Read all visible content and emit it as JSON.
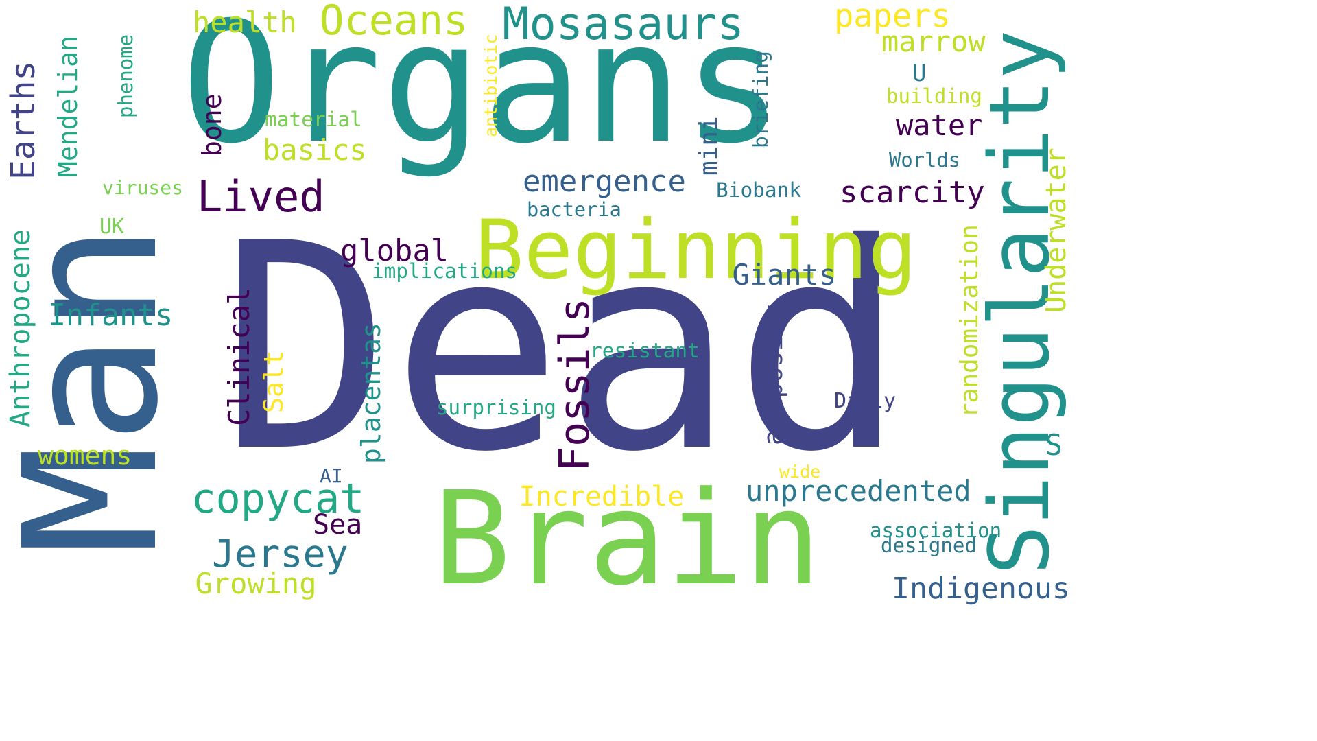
{
  "palette": {
    "dark_purple": "#440154",
    "indigo": "#414487",
    "steel_blue": "#355f8d",
    "blue_teal": "#2a788e",
    "teal": "#21918c",
    "sea_green": "#22a884",
    "green": "#44bf70",
    "yellow_green": "#7ad151",
    "lime": "#bddf26",
    "yellow": "#fde725"
  },
  "words": [
    {
      "text": "Dead",
      "color": "#414487"
    },
    {
      "text": "Organs",
      "color": "#21918c"
    },
    {
      "text": "Man",
      "color": "#355f8d"
    },
    {
      "text": "Brain",
      "color": "#7ad151"
    },
    {
      "text": "Singularity",
      "color": "#21918c"
    },
    {
      "text": "Beginning",
      "color": "#bddf26"
    },
    {
      "text": "Fossils",
      "color": "#440154"
    },
    {
      "text": "Oceans",
      "color": "#bddf26"
    },
    {
      "text": "Mosasaurs",
      "color": "#21918c"
    },
    {
      "text": "papers",
      "color": "#fde725"
    },
    {
      "text": "Earths",
      "color": "#414487"
    },
    {
      "text": "Lived",
      "color": "#440154"
    },
    {
      "text": "copycat",
      "color": "#22a884"
    },
    {
      "text": "Jersey",
      "color": "#2a788e"
    },
    {
      "text": "Mendelian",
      "color": "#22a884"
    },
    {
      "text": "Anthropocene",
      "color": "#22a884"
    },
    {
      "text": "Infants",
      "color": "#21918c"
    },
    {
      "text": "womens",
      "color": "#bddf26"
    },
    {
      "text": "health",
      "color": "#bddf26"
    },
    {
      "text": "marrow",
      "color": "#bddf26"
    },
    {
      "text": "U",
      "color": "#2a788e"
    },
    {
      "text": "building",
      "color": "#bddf26"
    },
    {
      "text": "water",
      "color": "#440154"
    },
    {
      "text": "Worlds",
      "color": "#2a788e"
    },
    {
      "text": "Underwater",
      "color": "#bddf26"
    },
    {
      "text": "scarcity",
      "color": "#440154"
    },
    {
      "text": "Biobank",
      "color": "#2a788e"
    },
    {
      "text": "emergence",
      "color": "#355f8d"
    },
    {
      "text": "bacteria",
      "color": "#2a788e"
    },
    {
      "text": "briefing",
      "color": "#2a788e"
    },
    {
      "text": "mini",
      "color": "#355f8d"
    },
    {
      "text": "antibiotic",
      "color": "#fde725"
    },
    {
      "text": "material",
      "color": "#7ad151"
    },
    {
      "text": "basics",
      "color": "#bddf26"
    },
    {
      "text": "bone",
      "color": "#440154"
    },
    {
      "text": "phenome",
      "color": "#22a884"
    },
    {
      "text": "viruses",
      "color": "#7ad151"
    },
    {
      "text": "UK",
      "color": "#7ad151"
    },
    {
      "text": "global",
      "color": "#440154"
    },
    {
      "text": "implications",
      "color": "#22a884"
    },
    {
      "text": "Giants",
      "color": "#355f8d"
    },
    {
      "text": "Clinical",
      "color": "#440154"
    },
    {
      "text": "Salt",
      "color": "#fde725"
    },
    {
      "text": "placentas",
      "color": "#21918c"
    },
    {
      "text": "adiposity",
      "color": "#414487"
    },
    {
      "text": "resistant",
      "color": "#22a884"
    },
    {
      "text": "randomization",
      "color": "#bddf26"
    },
    {
      "text": "S",
      "color": "#21918c"
    },
    {
      "text": "surprising",
      "color": "#22a884"
    },
    {
      "text": "Daily",
      "color": "#414487"
    },
    {
      "text": "AI",
      "color": "#355f8d"
    },
    {
      "text": "wide",
      "color": "#fde725"
    },
    {
      "text": "unprecedented",
      "color": "#2a788e"
    },
    {
      "text": "Incredible",
      "color": "#fde725"
    },
    {
      "text": "Sea",
      "color": "#440154"
    },
    {
      "text": "association",
      "color": "#21918c"
    },
    {
      "text": "designed",
      "color": "#2a788e"
    },
    {
      "text": "Growing",
      "color": "#bddf26"
    },
    {
      "text": "Indigenous",
      "color": "#355f8d"
    }
  ]
}
